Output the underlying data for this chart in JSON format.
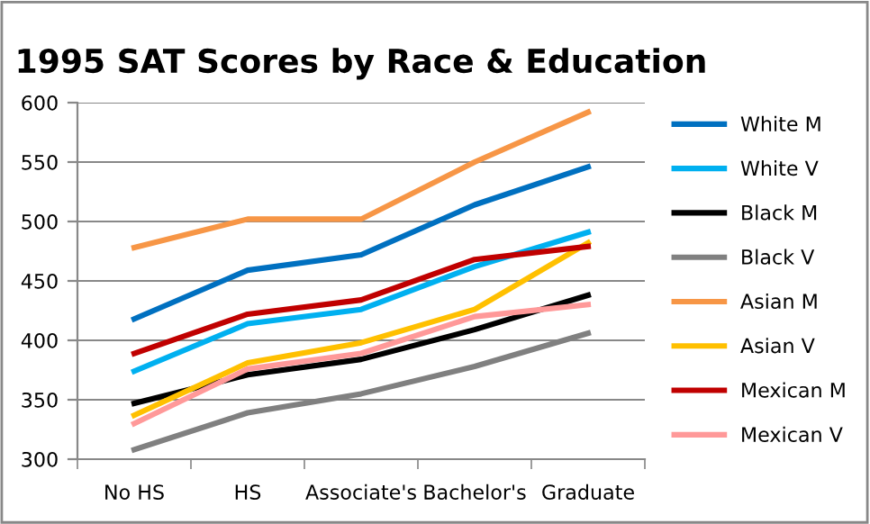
{
  "chart_data": {
    "type": "line",
    "title": "1995 SAT Scores by Race & Education",
    "categories": [
      "No HS",
      "HS",
      "Associate's",
      "Bachelor's",
      "Graduate"
    ],
    "series": [
      {
        "name": "White M",
        "color": "#0070c0",
        "values": [
          418,
          459,
          472,
          514,
          546
        ]
      },
      {
        "name": "White V",
        "color": "#00b0f0",
        "values": [
          374,
          414,
          426,
          462,
          491
        ]
      },
      {
        "name": "Black M",
        "color": "#000000",
        "values": [
          347,
          371,
          384,
          409,
          438
        ]
      },
      {
        "name": "Black V",
        "color": "#808080",
        "values": [
          308,
          339,
          355,
          378,
          406
        ]
      },
      {
        "name": "Asian M",
        "color": "#f79646",
        "values": [
          478,
          502,
          502,
          550,
          592
        ]
      },
      {
        "name": "Asian V",
        "color": "#ffc000",
        "values": [
          337,
          381,
          398,
          426,
          482
        ]
      },
      {
        "name": "Mexican M",
        "color": "#c00000",
        "values": [
          389,
          422,
          434,
          468,
          479
        ]
      },
      {
        "name": "Mexican V",
        "color": "#ff9999",
        "values": [
          330,
          376,
          389,
          420,
          430
        ]
      }
    ],
    "ylim": [
      300,
      600
    ],
    "yticks": [
      300,
      350,
      400,
      450,
      500,
      550,
      600
    ],
    "grid": "y",
    "legend": "right",
    "marker": "none",
    "line_style": "solid"
  }
}
